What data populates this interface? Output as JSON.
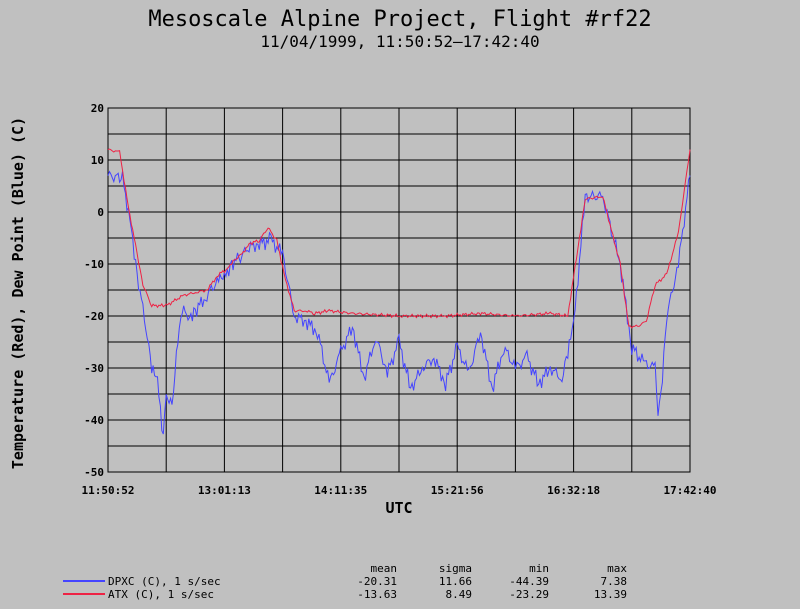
{
  "chart_data": {
    "type": "line",
    "title": "Mesoscale Alpine Project, Flight #rf22",
    "subtitle": "11/04/1999, 11:50:52–17:42:40",
    "xlabel": "UTC",
    "ylabel": "Temperature (Red), Dew Point (Blue) (C)",
    "ylim": [
      -50,
      20
    ],
    "yticks": [
      -50,
      -40,
      -30,
      -20,
      -10,
      0,
      10,
      20
    ],
    "xlim_seconds": [
      42652,
      63760
    ],
    "xtick_labels": [
      "11:50:52",
      "13:01:13",
      "14:11:35",
      "15:21:56",
      "16:32:18",
      "17:42:40"
    ],
    "grid": true,
    "series": [
      {
        "name": "ATX (C), 1 s/sec",
        "color": "#ee2244",
        "stats": {
          "mean": "-13.63",
          "sigma": "8.49",
          "min": "-23.29",
          "max": "13.39"
        },
        "t": [
          0.0,
          0.02,
          0.035,
          0.05,
          0.06,
          0.075,
          0.1,
          0.13,
          0.15,
          0.17,
          0.19,
          0.205,
          0.215,
          0.23,
          0.245,
          0.26,
          0.275,
          0.29,
          0.305,
          0.32,
          0.34,
          0.355,
          0.38,
          0.42,
          0.5,
          0.58,
          0.64,
          0.7,
          0.76,
          0.79,
          0.81,
          0.82,
          0.85,
          0.88,
          0.895,
          0.91,
          0.925,
          0.94,
          0.96,
          0.98,
          1.0
        ],
        "values": [
          12,
          11.5,
          1,
          -8,
          -14,
          -18,
          -18,
          -16,
          -15.5,
          -15,
          -12,
          -11,
          -9.5,
          -8,
          -6,
          -5.5,
          -3,
          -5.5,
          -13,
          -19,
          -19,
          -19.5,
          -19,
          -19.5,
          -20,
          -20,
          -19.5,
          -20,
          -19.5,
          -20,
          -5,
          2.5,
          3,
          -10,
          -22,
          -22,
          -21,
          -14,
          -12,
          -4,
          12
        ]
      },
      {
        "name": "DPXC (C), 1 s/sec",
        "color": "#4444ff",
        "stats": {
          "mean": "-20.31",
          "sigma": "11.66",
          "min": "-44.39",
          "max": "7.38"
        },
        "t": [
          0.0,
          0.025,
          0.04,
          0.05,
          0.065,
          0.075,
          0.085,
          0.095,
          0.1,
          0.11,
          0.115,
          0.125,
          0.13,
          0.14,
          0.15,
          0.17,
          0.19,
          0.2,
          0.21,
          0.225,
          0.24,
          0.26,
          0.28,
          0.3,
          0.32,
          0.34,
          0.36,
          0.38,
          0.4,
          0.42,
          0.44,
          0.46,
          0.48,
          0.5,
          0.52,
          0.54,
          0.56,
          0.58,
          0.6,
          0.62,
          0.64,
          0.66,
          0.68,
          0.7,
          0.72,
          0.74,
          0.76,
          0.78,
          0.79,
          0.8,
          0.82,
          0.85,
          0.88,
          0.9,
          0.92,
          0.94,
          0.945,
          0.95,
          0.96,
          0.98,
          1.0
        ],
        "values": [
          7,
          6.5,
          -3,
          -12,
          -22,
          -30,
          -33,
          -43,
          -35,
          -37,
          -30,
          -21,
          -19,
          -20,
          -19,
          -16,
          -13,
          -13,
          -10,
          -9,
          -7,
          -6,
          -5.5,
          -8,
          -20,
          -21,
          -23,
          -33,
          -27,
          -22,
          -32,
          -24,
          -31,
          -25,
          -34,
          -30,
          -28,
          -33,
          -26,
          -31,
          -23,
          -34,
          -26,
          -30,
          -28,
          -33,
          -30,
          -32,
          -27,
          -22,
          3,
          3,
          -10,
          -26,
          -29,
          -30,
          -39,
          -35,
          -20,
          -10,
          7
        ]
      }
    ]
  },
  "legend_headers": {
    "mean": "mean",
    "sigma": "sigma",
    "min": "min",
    "max": "max"
  }
}
